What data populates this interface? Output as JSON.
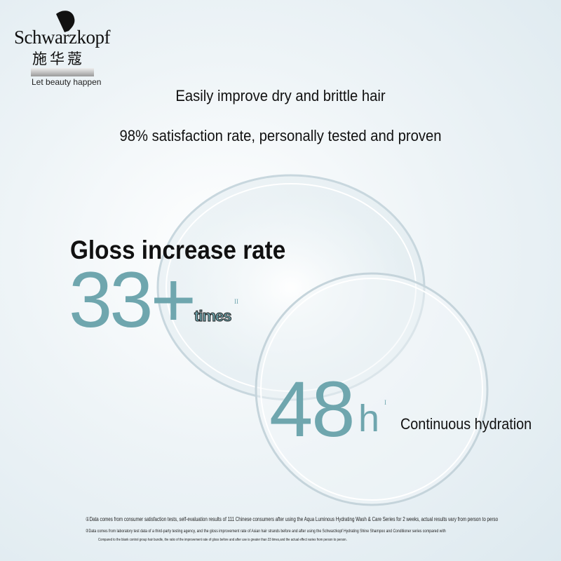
{
  "brand": {
    "name": "Schwarzkopf",
    "name_cn": "施华蔻",
    "slogan": "Let beauty happen"
  },
  "headline": {
    "line1": "Easily improve dry and brittle hair",
    "line2": "98% satisfaction rate, personally tested and proven"
  },
  "gloss": {
    "label": "Gloss increase rate",
    "number": "33+",
    "unit": "times",
    "note_mark": "II"
  },
  "hydration": {
    "number": "48",
    "unit": "h",
    "note_mark": "I",
    "label": "Continuous hydration"
  },
  "footnotes": [
    "①Data comes from consumer satisfaction tests, self-evaluation results of 111 Chinese consumers after using the Aqua Luminous Hydrating Wash & Care Series for 2 weeks, actual results vary from person to perso",
    "②Data comes from laboratory test data of a third-party testing agency, and the gloss improvement rate of Asian hair strands before and after using the Schwarzkopf Hydrating Shine Shampoo and Conditioner series compared with",
    "Compared to the blank control group hair bundle, the ratio of the improvement rate of gloss before and after use is greater than 33 times,and the actual effect varies from person to person."
  ]
}
